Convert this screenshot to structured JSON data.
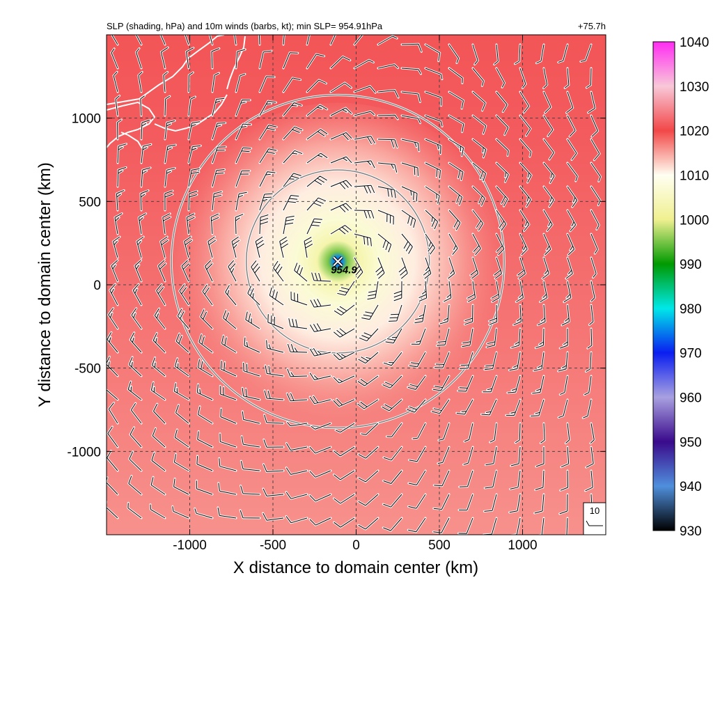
{
  "chart_data": {
    "type": "heatmap",
    "title": "SLP (shading, hPa) and 10m winds (barbs, kt); min SLP= 954.91hPa",
    "time_label": "+75.7h",
    "xlabel": "X distance to domain center (km)",
    "ylabel": "Y distance to domain center (km)",
    "xlim": [
      -1500,
      1500
    ],
    "ylim": [
      -1500,
      1500
    ],
    "x_ticks": [
      -1000,
      -500,
      0,
      500,
      1000
    ],
    "y_ticks": [
      -1000,
      -500,
      0,
      500,
      1000
    ],
    "x_tick_labels": [
      "-1000",
      "-500",
      "0",
      "500",
      "1000"
    ],
    "y_tick_labels": [
      "-1000",
      "-500",
      "0",
      "500",
      "1000"
    ],
    "grid": true,
    "colorbar": {
      "min": 930,
      "max": 1040,
      "ticks": [
        930,
        940,
        950,
        960,
        970,
        980,
        990,
        1000,
        1010,
        1020,
        1030,
        1040
      ],
      "tick_labels": [
        "930",
        "940",
        "950",
        "960",
        "970",
        "980",
        "990",
        "1000",
        "1010",
        "1020",
        "1030",
        "1040"
      ],
      "stops": [
        {
          "value": 930,
          "color": "#000000"
        },
        {
          "value": 940,
          "color": "#4f8fdc"
        },
        {
          "value": 950,
          "color": "#3a0a8c"
        },
        {
          "value": 960,
          "color": "#a8a0e0"
        },
        {
          "value": 970,
          "color": "#0a1ef0"
        },
        {
          "value": 980,
          "color": "#00e8e8"
        },
        {
          "value": 990,
          "color": "#009a00"
        },
        {
          "value": 1000,
          "color": "#f0f090"
        },
        {
          "value": 1010,
          "color": "#fffff2"
        },
        {
          "value": 1020,
          "color": "#f24848"
        },
        {
          "value": 1030,
          "color": "#f8c8d8"
        },
        {
          "value": 1040,
          "color": "#ff2cf2"
        }
      ]
    },
    "min_slp": {
      "value": 954.91,
      "label": "954.9",
      "x": -110,
      "y": 140
    },
    "range_rings_km": [
      550,
      1000
    ],
    "ring_center": [
      -110,
      140
    ],
    "background_pressure": {
      "north": 1021,
      "south": 1016
    },
    "reference_barb": {
      "label": "10",
      "speed_kt": 10
    }
  }
}
